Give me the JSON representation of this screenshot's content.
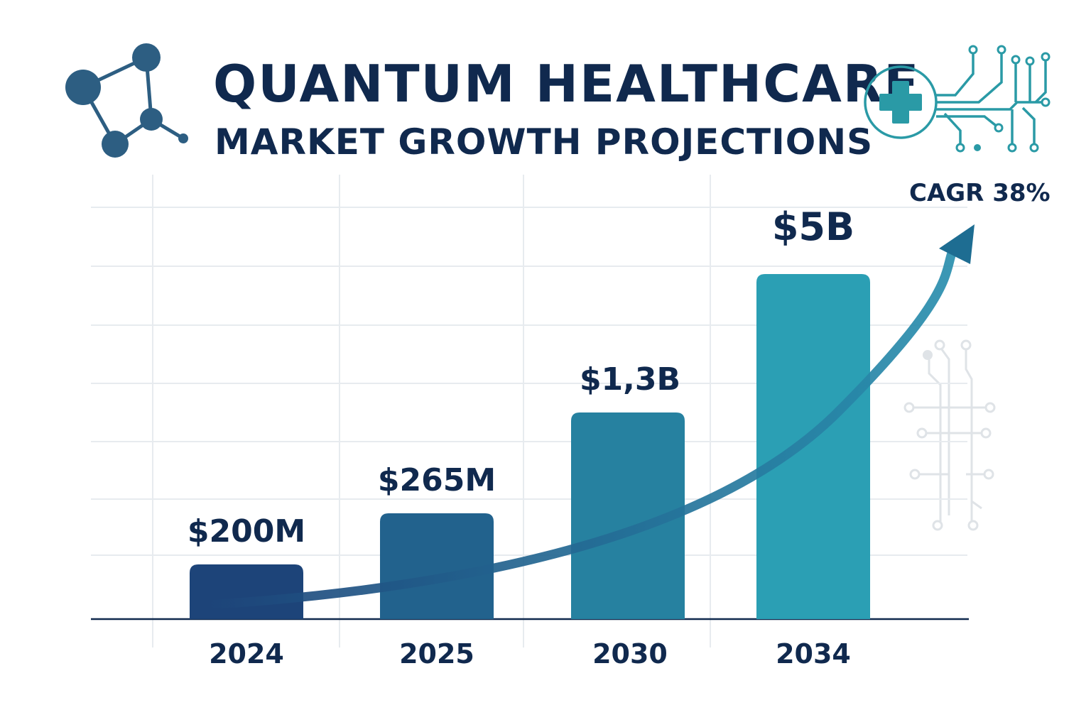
{
  "header": {
    "title": "QUANTUM HEALTHCARE",
    "subtitle": "MARKET GROWTH PROJECTIONS",
    "icons": [
      "molecule-icon",
      "medical-cross-circuit-icon",
      "circuit-board-icon"
    ]
  },
  "annotation": {
    "cagr": "CAGR 38%"
  },
  "colors": {
    "title": "#10294e",
    "bar_start": "#1d4479",
    "bar_end": "#2b9fb4",
    "trend": "#1e6d92",
    "accent_teal": "#2a9aa6",
    "grid": "#e7ebef"
  },
  "chart_data": {
    "type": "bar",
    "title": "QUANTUM HEALTHCARE MARKET GROWTH PROJECTIONS",
    "categories": [
      "2024",
      "2025",
      "2030",
      "2034"
    ],
    "values": [
      200,
      265,
      1300,
      5000
    ],
    "value_unit": "USD millions",
    "data_labels": [
      "$200M",
      "$265M",
      "$1,3B",
      "$5B"
    ],
    "trend_line": {
      "type": "exponential-arrow",
      "label": "CAGR 38%"
    },
    "xlabel": "",
    "ylabel": "",
    "grid": true,
    "legend": "none"
  }
}
